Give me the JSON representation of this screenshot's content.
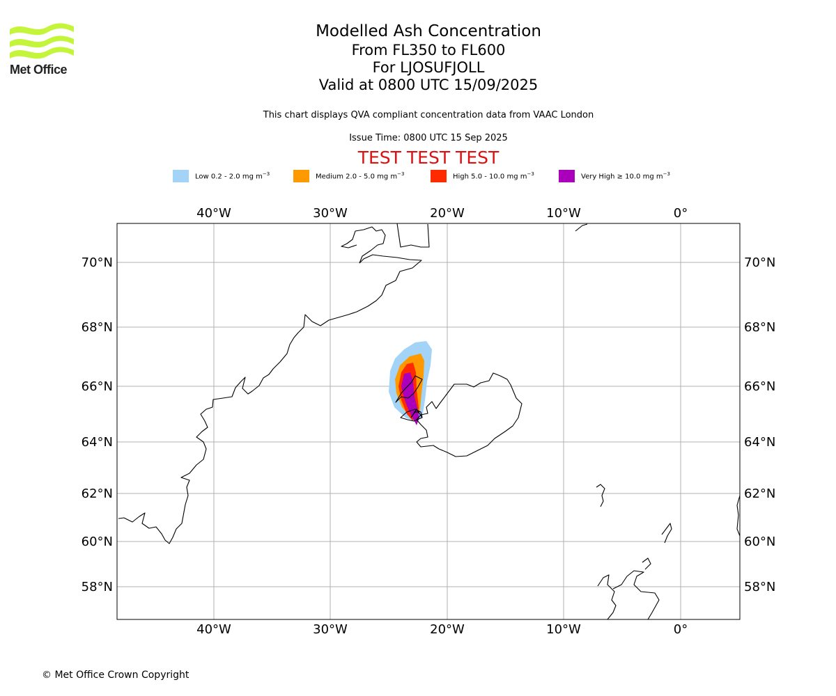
{
  "logo": {
    "text": "Met Office",
    "color": "#c5f53a"
  },
  "title": {
    "line1": "Modelled Ash Concentration",
    "line2": "From FL350 to FL600",
    "line3": "For LJOSUFJOLL",
    "line4": "Valid at 0800 UTC 15/09/2025"
  },
  "subtitle": "This chart displays QVA compliant concentration data from VAAC London",
  "issue_time": "Issue Time: 0800 UTC 15 Sep 2025",
  "test_banner": "TEST TEST TEST",
  "legend": [
    {
      "label": "Low 0.2 - 2.0 mg m",
      "sup": "−3",
      "color": "#a3d4f7"
    },
    {
      "label": "Medium 2.0 - 5.0 mg m",
      "sup": "−3",
      "color": "#ff9900"
    },
    {
      "label": "High 5.0 - 10.0 mg m",
      "sup": "−3",
      "color": "#ff2a00"
    },
    {
      "label": "Very High  ≥  10.0 mg m",
      "sup": "−3",
      "color": "#aa00bb"
    }
  ],
  "map": {
    "lon_labels": [
      "40°W",
      "30°W",
      "20°W",
      "10°W",
      "0°"
    ],
    "lat_labels": [
      "70°N",
      "68°N",
      "66°N",
      "64°N",
      "62°N",
      "60°N",
      "58°N"
    ]
  },
  "copyright": "© Met Office Crown Copyright"
}
